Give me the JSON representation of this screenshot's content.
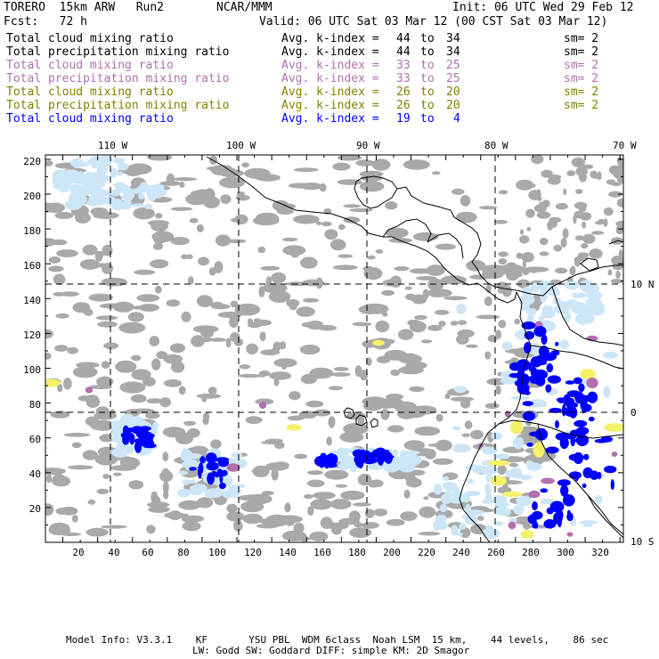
{
  "header": {
    "model": "TORERO  15km ARW   Run2",
    "org": "NCAR/MMM",
    "init": "Init: 06 UTC Wed 29 Feb 12",
    "fcst": "Fcst:   72 h",
    "valid": "Valid: 06 UTC Sat 03 Mar 12 (00 CST Sat 03 Mar 12)"
  },
  "fields": [
    {
      "name": "Total cloud mixing ratio",
      "kindex": "Avg. k-index = ",
      "from": "44",
      "to_word": "to",
      "to": "34",
      "sm": "sm= 2",
      "color": "#000000"
    },
    {
      "name": "Total precipitation mixing ratio",
      "kindex": "Avg. k-index = ",
      "from": "44",
      "to_word": "to",
      "to": "34",
      "sm": "sm= 2",
      "color": "#000000"
    },
    {
      "name": "Total cloud mixing ratio",
      "kindex": "Avg. k-index = ",
      "from": "33",
      "to_word": "to",
      "to": "25",
      "sm": "sm= 2",
      "color": "#b070b0"
    },
    {
      "name": "Total precipitation mixing ratio",
      "kindex": "Avg. k-index = ",
      "from": "33",
      "to_word": "to",
      "to": "25",
      "sm": "sm= 2",
      "color": "#b070b0"
    },
    {
      "name": "Total cloud mixing ratio",
      "kindex": "Avg. k-index = ",
      "from": "26",
      "to_word": "to",
      "to": "20",
      "sm": "sm= 2",
      "color": "#808000"
    },
    {
      "name": "Total precipitation mixing ratio",
      "kindex": "Avg. k-index = ",
      "from": "26",
      "to_word": "to",
      "to": "20",
      "sm": "sm= 2",
      "color": "#808000"
    },
    {
      "name": "Total cloud mixing ratio",
      "kindex": "Avg. k-index = ",
      "from": "19",
      "to_word": "to",
      "to": "4",
      "sm": "",
      "color": "#0000ff"
    }
  ],
  "map": {
    "lon_labels": [
      "110 W",
      "100 W",
      "90 W",
      "80 W",
      "70 W"
    ],
    "lat_labels": [
      "10 N",
      "0",
      "10 S"
    ],
    "y_ticks": [
      "220",
      "200",
      "180",
      "160",
      "140",
      "120",
      "100",
      "80",
      "60",
      "40",
      "20"
    ],
    "x_ticks": [
      "20",
      "40",
      "60",
      "80",
      "100",
      "120",
      "140",
      "160",
      "180",
      "200",
      "220",
      "240",
      "260",
      "280",
      "300",
      "320"
    ],
    "colors": {
      "gray": "#a9a9a9",
      "lightblue": "#cde6f7",
      "blue": "#0000ff",
      "purple": "#b070b0",
      "yellow": "#f5f06a"
    }
  },
  "footer": {
    "line1": "Model Info: V3.3.1    KF       YSU PBL  WDM 6class  Noah LSM  15 km,    44 levels,    86 sec",
    "line2": "LW: Godd SW: Goddard DIFF: simple KM: 2D Smagor"
  }
}
